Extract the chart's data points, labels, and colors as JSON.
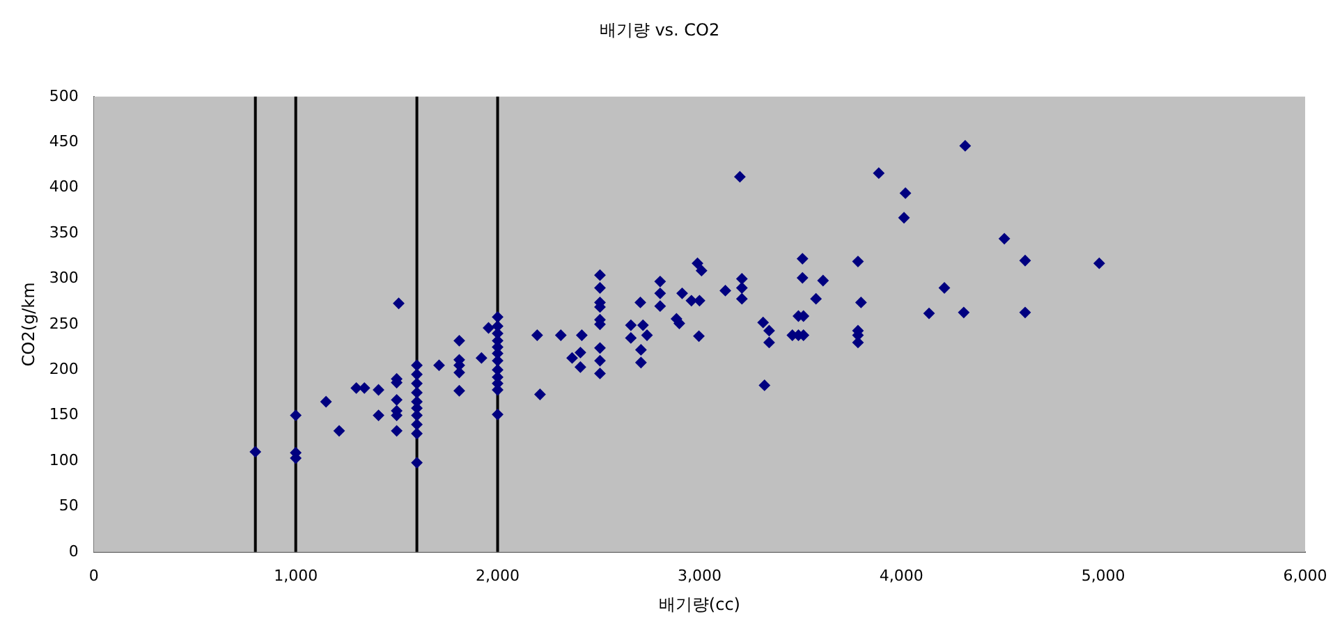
{
  "chart_data": {
    "type": "scatter",
    "title": "배기량 vs. CO2",
    "xlabel": "배기량(cc)",
    "ylabel": "CO2(g/km",
    "marker": "diamond",
    "grid": false,
    "legend": false,
    "xlim": [
      0,
      6000
    ],
    "xticks": [
      0,
      {
        "value": 1000,
        "label": "1,000"
      },
      {
        "value": 2000,
        "label": "2,000"
      },
      {
        "value": 3000,
        "label": "3,000"
      },
      {
        "value": 4000,
        "label": "4,000"
      },
      {
        "value": 5000,
        "label": "5,000"
      },
      {
        "value": 6000,
        "label": "6,000"
      }
    ],
    "ylim": [
      0,
      500
    ],
    "yticks": [
      0,
      50,
      100,
      150,
      200,
      250,
      300,
      350,
      400,
      450,
      500
    ],
    "ref_lines": [
      {
        "axis": "x",
        "value": 800,
        "color": "#000000"
      },
      {
        "axis": "x",
        "value": 1000,
        "color": "#000000"
      },
      {
        "axis": "x",
        "value": 1600,
        "color": "#000000"
      },
      {
        "axis": "x",
        "value": 2000,
        "color": "#000000"
      }
    ],
    "series": [
      {
        "color": "#000080",
        "x": [
          800,
          1000,
          1000,
          1000,
          1150,
          1215,
          1300,
          1340,
          1410,
          1410,
          1510,
          1500,
          1500,
          1500,
          1500,
          1500,
          1500,
          1600,
          1600,
          1600,
          1600,
          1600,
          1600,
          1600,
          1600,
          1600,
          1600,
          1710,
          1810,
          1810,
          1810,
          1810,
          1810,
          1920,
          1955,
          2000,
          2000,
          2000,
          2000,
          2000,
          2000,
          2000,
          2000,
          2000,
          2000,
          2000,
          2000,
          2196,
          2210,
          2313,
          2417,
          2369,
          2410,
          2410,
          2507,
          2507,
          2507,
          2507,
          2507,
          2507,
          2507,
          2507,
          2507,
          2707,
          2660,
          2720,
          2740,
          2710,
          2710,
          2660,
          2805,
          2805,
          2805,
          2914,
          2886,
          2900,
          2960,
          3000,
          2990,
          3010,
          2997,
          3128,
          3210,
          3210,
          3210,
          3200,
          3315,
          3345,
          3345,
          3322,
          3460,
          3490,
          3515,
          3490,
          3515,
          3510,
          3510,
          3577,
          3612,
          3785,
          3800,
          3785,
          3785,
          3785,
          4316,
          3888,
          4020,
          4013,
          4510,
          4613,
          4980,
          4213,
          4137,
          4309,
          4613
        ],
        "values": [
          110,
          150,
          109,
          103,
          165,
          133,
          180,
          180,
          178,
          150,
          273,
          190,
          167,
          155,
          150,
          133,
          186,
          205,
          195,
          185,
          175,
          165,
          158,
          150,
          140,
          130,
          98,
          205,
          232,
          211,
          205,
          197,
          177,
          213,
          246,
          258,
          248,
          240,
          232,
          225,
          218,
          210,
          200,
          192,
          185,
          178,
          151,
          238,
          173,
          238,
          238,
          213,
          219,
          203,
          304,
          290,
          274,
          269,
          255,
          250,
          224,
          210,
          196,
          274,
          249,
          249,
          238,
          222,
          208,
          235,
          297,
          284,
          270,
          284,
          256,
          251,
          276,
          276,
          317,
          309,
          237,
          287,
          300,
          290,
          278,
          412,
          252,
          243,
          230,
          183,
          238,
          238,
          238,
          259,
          259,
          322,
          301,
          278,
          298,
          319,
          274,
          243,
          238,
          230,
          446,
          416,
          394,
          367,
          344,
          320,
          317,
          290,
          262,
          263,
          263
        ]
      }
    ]
  }
}
